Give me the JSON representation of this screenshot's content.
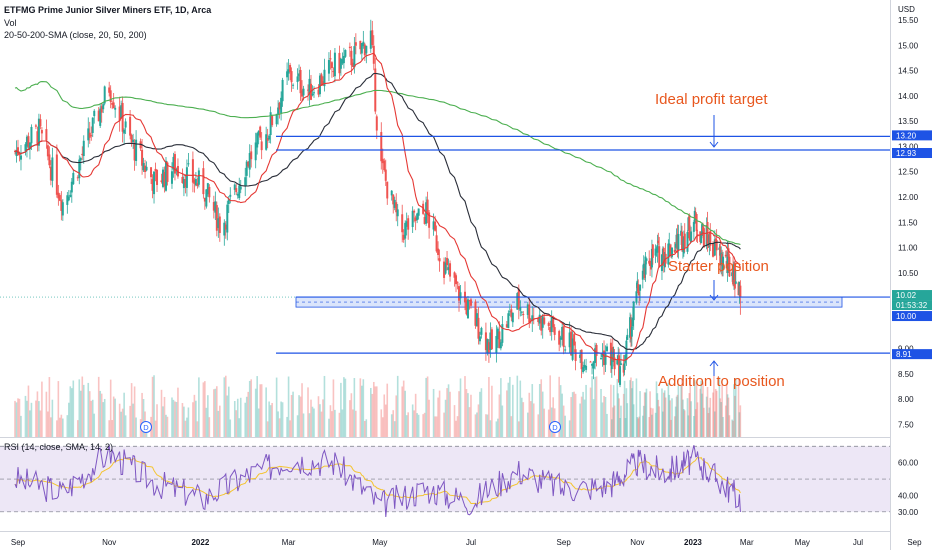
{
  "header": {
    "title": "ETFMG Prime Junior Silver Miners ETF, 1D, Arca",
    "volume_label": "Vol",
    "indicator_label": "20-50-200-SMA (close, 20, 50, 200)",
    "currency": "USD"
  },
  "rsi_header": {
    "label": "RSI (14, close, SMA, 14, 2)"
  },
  "annotations": {
    "target": "Ideal profit target",
    "starter": "Starter position",
    "addition": "Addition to position"
  },
  "price_tags": {
    "target_high": "13.20",
    "target_low": "12.93",
    "current": "10.02",
    "countdown": "01:53:32",
    "zone_low": "10.00",
    "add": "8.91"
  },
  "dividend_marker": "D",
  "colors": {
    "up": "#26a69a",
    "down": "#ef5350",
    "sma20": "#e53935",
    "sma50": "#2a2e39",
    "sma200": "#4caf50",
    "level_line": "#1e53e5",
    "zone_fill": "#dbe5fb",
    "annotation": "#e8571e",
    "rsi_line": "#7e57c2",
    "rsi_sma": "#f4c430",
    "rsi_band": "#ede7f6"
  },
  "chart_data": [
    {
      "type": "candlestick",
      "title": "ETFMG Prime Junior Silver Miners ETF, 1D, Arca",
      "ylabel": "USD",
      "ylim": [
        7.25,
        15.8
      ],
      "y_ticks": [
        "7.50",
        "8.00",
        "8.50",
        "9.00",
        "10.50",
        "11.00",
        "11.50",
        "12.00",
        "12.50",
        "13.00",
        "13.50",
        "14.00",
        "14.50",
        "15.00",
        "15.50"
      ],
      "x_ticks": [
        "Sep",
        "Nov",
        "2022",
        "Mar",
        "May",
        "Jul",
        "Sep",
        "Nov",
        "2023",
        "Mar",
        "May",
        "Jul",
        "Sep"
      ],
      "series": [
        {
          "name": "Close",
          "x": [
            "2021-08-30",
            "2021-09-15",
            "2021-10-01",
            "2021-10-15",
            "2021-11-01",
            "2021-11-15",
            "2021-12-01",
            "2021-12-15",
            "2022-01-03",
            "2022-01-15",
            "2022-02-01",
            "2022-02-15",
            "2022-03-01",
            "2022-03-15",
            "2022-04-01",
            "2022-04-15",
            "2022-04-25",
            "2022-05-01",
            "2022-05-15",
            "2022-06-01",
            "2022-06-15",
            "2022-07-01",
            "2022-07-15",
            "2022-08-01",
            "2022-08-15",
            "2022-09-01",
            "2022-09-15",
            "2022-10-01",
            "2022-10-15",
            "2022-11-01",
            "2022-11-15",
            "2022-12-01",
            "2022-12-15",
            "2023-01-03",
            "2023-01-15",
            "2023-02-01",
            "2023-02-15",
            "2023-02-22"
          ],
          "values": [
            12.9,
            13.3,
            11.9,
            12.9,
            14.2,
            13.1,
            12.3,
            12.6,
            12.2,
            11.4,
            12.7,
            13.3,
            14.4,
            14.1,
            14.6,
            14.8,
            15.2,
            12.7,
            11.3,
            11.7,
            10.5,
            9.7,
            9.0,
            9.9,
            9.6,
            9.2,
            8.8,
            8.9,
            8.5,
            10.1,
            10.8,
            10.9,
            11.1,
            11.5,
            11.2,
            10.8,
            10.5,
            10.02
          ]
        }
      ],
      "moving_averages": [
        "SMA 20",
        "SMA 50",
        "SMA 200"
      ],
      "levels": [
        13.2,
        12.93,
        10.02,
        10.0,
        8.91
      ],
      "annotations": [
        "Ideal profit target",
        "Starter position",
        "Addition to position"
      ]
    },
    {
      "type": "line",
      "title": "RSI (14, close, SMA, 14, 2)",
      "ylim": [
        25,
        72
      ],
      "y_ticks": [
        "30.00",
        "40.00",
        "60.00"
      ],
      "band": [
        30,
        70
      ],
      "series": [
        {
          "name": "RSI",
          "x": [
            "2021-08-30",
            "2021-10-01",
            "2021-11-01",
            "2021-12-01",
            "2022-01-03",
            "2022-02-01",
            "2022-03-01",
            "2022-04-01",
            "2022-05-01",
            "2022-06-01",
            "2022-07-01",
            "2022-08-01",
            "2022-09-01",
            "2022-10-01",
            "2022-11-01",
            "2022-12-01",
            "2023-01-03",
            "2023-02-01",
            "2023-02-22"
          ],
          "values": [
            50,
            42,
            66,
            48,
            38,
            52,
            62,
            60,
            34,
            44,
            36,
            55,
            44,
            46,
            60,
            54,
            62,
            48,
            38
          ]
        }
      ]
    }
  ]
}
